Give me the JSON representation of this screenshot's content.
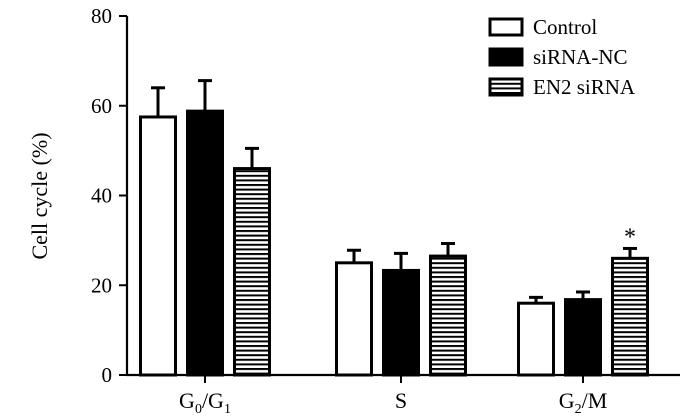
{
  "chart_data": {
    "type": "bar",
    "title": "",
    "xlabel": "",
    "ylabel": "Cell cycle (%)",
    "ylim": [
      0,
      80
    ],
    "yticks": [
      0,
      20,
      40,
      60,
      80
    ],
    "categories": [
      {
        "main": "G",
        "sub1": "0",
        "mid": "/G",
        "sub2": "1",
        "full": "G0/G1"
      },
      {
        "main": "S",
        "sub1": "",
        "mid": "",
        "sub2": "",
        "full": "S"
      },
      {
        "main": "G",
        "sub1": "2",
        "mid": "/M",
        "sub2": "",
        "full": "G2/M"
      }
    ],
    "series": [
      {
        "name": "Control",
        "fill": "white",
        "values": [
          57.5,
          25,
          16
        ],
        "errors": [
          6.5,
          2.8,
          1.3
        ]
      },
      {
        "name": "siRNA-NC",
        "fill": "black",
        "values": [
          58.8,
          23.3,
          16.8
        ],
        "errors": [
          6.8,
          3.8,
          1.7
        ]
      },
      {
        "name": "EN2 siRNA",
        "fill": "hstripes",
        "values": [
          46,
          26.5,
          26
        ],
        "errors": [
          4.5,
          2.8,
          2.2
        ]
      }
    ],
    "annotations": [
      {
        "text": "*",
        "category_index": 2,
        "series_index": 2
      }
    ],
    "legend_position": "top-right",
    "colors": {
      "outline": "#000000",
      "solid": "#000000",
      "background": "#ffffff"
    }
  }
}
